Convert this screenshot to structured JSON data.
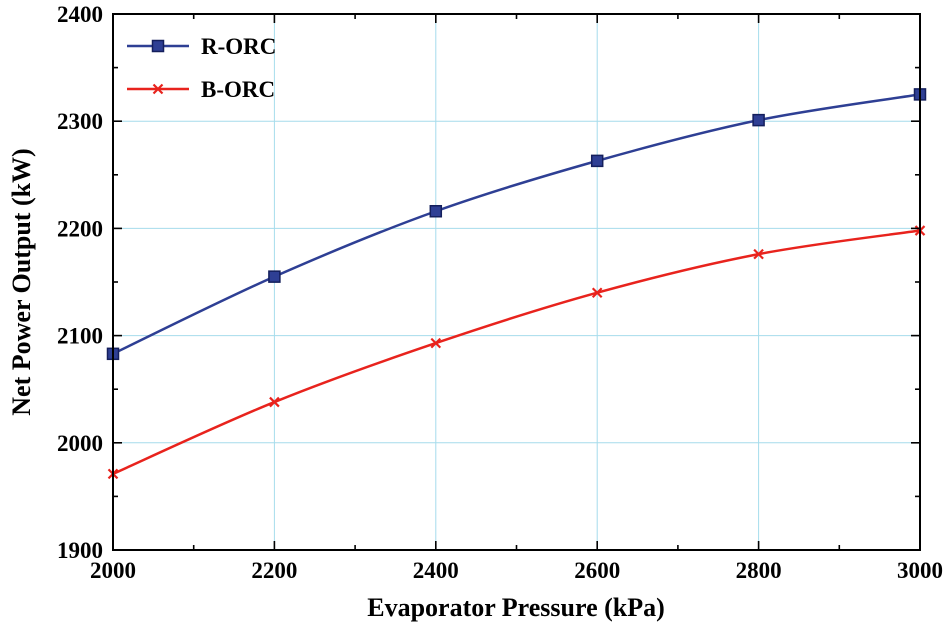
{
  "chart_data": {
    "type": "line",
    "title": "",
    "xlabel": "Evaporator Pressure (kPa)",
    "ylabel": "Net Power Output (kW)",
    "x": [
      2000,
      2200,
      2400,
      2600,
      2800,
      3000
    ],
    "series": [
      {
        "name": "R-ORC",
        "color": "#2e3f94",
        "marker": "square",
        "marker_edge": "#141f5c",
        "values": [
          2083,
          2155,
          2216,
          2263,
          2301,
          2325
        ]
      },
      {
        "name": "B-ORC",
        "color": "#e8231d",
        "marker": "x",
        "marker_edge": "#e8231d",
        "values": [
          1971,
          2038,
          2093,
          2140,
          2176,
          2198
        ]
      }
    ],
    "xlim": [
      2000,
      3000
    ],
    "ylim": [
      1900,
      2400
    ],
    "xticks": [
      2000,
      2200,
      2400,
      2600,
      2800,
      3000
    ],
    "yticks": [
      1900,
      2000,
      2100,
      2200,
      2300,
      2400
    ],
    "x_minor_step": 100,
    "y_minor_step": 50,
    "grid": true,
    "grid_color": "#a6dcec",
    "frame_color": "#000000",
    "legend_position": "top-left"
  }
}
